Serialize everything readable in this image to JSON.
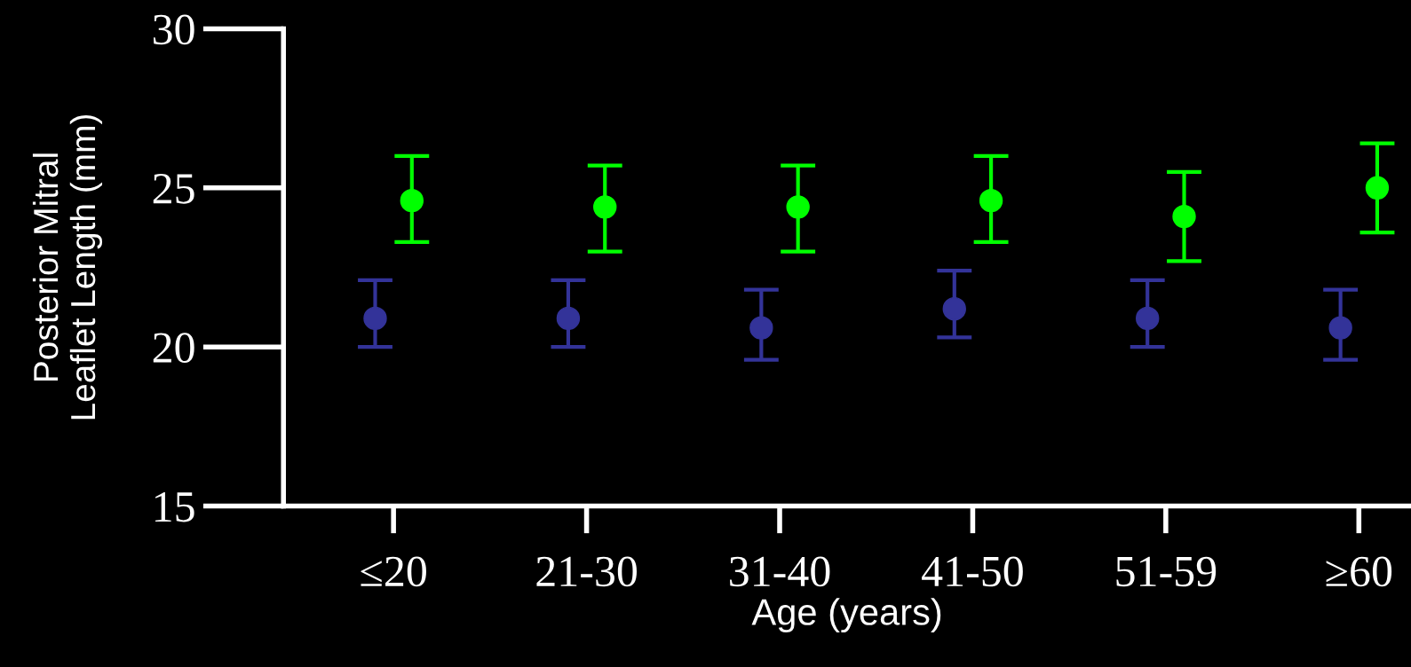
{
  "chart_data": {
    "type": "scatter",
    "xlabel": "Age (years)",
    "ylabel": "Posterior Mitral\nLeaflet Length (mm)",
    "categories": [
      "≤20",
      "21-30",
      "31-40",
      "41-50",
      "51-59",
      "≥60"
    ],
    "series": [
      {
        "color": "#333399",
        "values": [
          20.9,
          20.9,
          20.6,
          21.2,
          20.9,
          20.6
        ],
        "errors": [
          [
            20.0,
            22.1
          ],
          [
            20.0,
            22.1
          ],
          [
            19.6,
            21.8
          ],
          [
            20.3,
            22.4
          ],
          [
            20.0,
            22.1
          ],
          [
            19.6,
            21.8
          ]
        ]
      },
      {
        "color": "#00ff00",
        "values": [
          24.6,
          24.4,
          24.4,
          24.6,
          24.1,
          25.0
        ],
        "errors": [
          [
            23.3,
            26.0
          ],
          [
            23.0,
            25.7
          ],
          [
            23.0,
            25.7
          ],
          [
            23.3,
            26.0
          ],
          [
            22.7,
            25.5
          ],
          [
            23.6,
            26.4
          ]
        ]
      }
    ],
    "ylim": [
      15,
      30
    ],
    "yticks": [
      15,
      20,
      25,
      30
    ],
    "grid": false,
    "legend": false,
    "marker": "circle"
  }
}
